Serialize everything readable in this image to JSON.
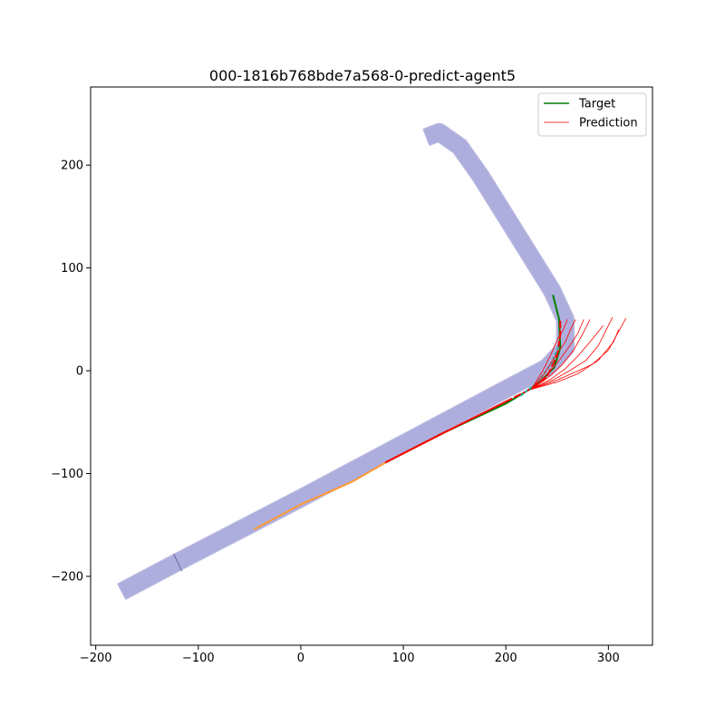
{
  "chart_data": {
    "type": "line",
    "title": "000-1816b768bde7a568-0-predict-agent5",
    "xlabel": "",
    "ylabel": "",
    "xlim": [
      -205,
      343
    ],
    "ylim": [
      -267,
      276
    ],
    "x_ticks": [
      -200,
      -100,
      0,
      100,
      200,
      300
    ],
    "x_tick_labels": [
      "−200",
      "−100",
      "0",
      "100",
      "200",
      "300"
    ],
    "y_ticks": [
      -200,
      -100,
      0,
      100,
      200
    ],
    "y_tick_labels": [
      "−200",
      "−100",
      "0",
      "100",
      "200"
    ],
    "grid": false,
    "legend": {
      "placement": "top-right",
      "entries": [
        {
          "label": "Target",
          "color": "#008000"
        },
        {
          "label": "Prediction",
          "color": "#ff0000"
        }
      ]
    },
    "lane": {
      "color": "#9e9edb",
      "centerline": [
        [
          -175,
          -215
        ],
        [
          -120,
          -186
        ],
        [
          0,
          -124
        ],
        [
          100,
          -71
        ],
        [
          200,
          -18
        ],
        [
          240,
          3
        ],
        [
          258,
          22
        ],
        [
          258,
          50
        ],
        [
          245,
          78
        ],
        [
          200,
          150
        ],
        [
          175,
          190
        ],
        [
          155,
          218
        ],
        [
          135,
          232
        ],
        [
          122,
          227
        ]
      ],
      "divider": [
        [
          -124,
          -178
        ],
        [
          -116,
          -195
        ]
      ]
    },
    "series": [
      {
        "name": "Target",
        "color": "#008000",
        "style": "solid",
        "points": [
          [
            83,
            -89
          ],
          [
            140,
            -60
          ],
          [
            200,
            -32
          ],
          [
            230,
            -14
          ],
          [
            247,
            3
          ],
          [
            253,
            22
          ],
          [
            252,
            50
          ],
          [
            246,
            73
          ]
        ]
      },
      {
        "color": "#ff9933",
        "style": "solid",
        "points": [
          [
            -45,
            -154
          ],
          [
            0,
            -130
          ],
          [
            50,
            -108
          ],
          [
            83,
            -89
          ]
        ]
      },
      {
        "color": "#ff0000",
        "style": "solid",
        "points": [
          [
            83,
            -89
          ],
          [
            140,
            -60
          ],
          [
            180,
            -40
          ],
          [
            200,
            -30
          ]
        ]
      },
      {
        "color": "#ff0000",
        "style": "dashed",
        "points": [
          [
            200,
            -30
          ],
          [
            220,
            -20
          ],
          [
            240,
            -6
          ],
          [
            250,
            15
          ],
          [
            253,
            35
          ],
          [
            253,
            48
          ]
        ]
      },
      {
        "color": "#20b2aa",
        "style": "dotted",
        "points": [
          [
            215,
            -24
          ],
          [
            232,
            -10
          ],
          [
            245,
            8
          ],
          [
            252,
            25
          ]
        ]
      }
    ],
    "prediction_fan": {
      "name": "Prediction",
      "color": "#ff0000",
      "trajectories": [
        [
          [
            225,
            -18
          ],
          [
            238,
            -2
          ],
          [
            248,
            14
          ],
          [
            258,
            28
          ],
          [
            263,
            40
          ],
          [
            268,
            50
          ]
        ],
        [
          [
            225,
            -18
          ],
          [
            240,
            -4
          ],
          [
            252,
            10
          ],
          [
            262,
            24
          ],
          [
            270,
            36
          ],
          [
            276,
            50
          ]
        ],
        [
          [
            225,
            -18
          ],
          [
            242,
            -6
          ],
          [
            255,
            6
          ],
          [
            266,
            20
          ],
          [
            274,
            34
          ],
          [
            282,
            50
          ]
        ],
        [
          [
            225,
            -18
          ],
          [
            244,
            -8
          ],
          [
            258,
            2
          ],
          [
            270,
            14
          ],
          [
            282,
            28
          ],
          [
            295,
            44
          ]
        ],
        [
          [
            225,
            -18
          ],
          [
            246,
            -9
          ],
          [
            262,
            0
          ],
          [
            278,
            10
          ],
          [
            290,
            24
          ],
          [
            304,
            52
          ]
        ],
        [
          [
            225,
            -18
          ],
          [
            248,
            -10
          ],
          [
            266,
            -2
          ],
          [
            284,
            6
          ],
          [
            300,
            20
          ],
          [
            317,
            51
          ]
        ],
        [
          [
            225,
            -18
          ],
          [
            236,
            0
          ],
          [
            244,
            16
          ],
          [
            250,
            30
          ],
          [
            256,
            40
          ],
          [
            260,
            50
          ]
        ],
        [
          [
            225,
            -18
          ],
          [
            250,
            -11
          ],
          [
            270,
            -3
          ],
          [
            290,
            10
          ],
          [
            305,
            28
          ],
          [
            310,
            40
          ]
        ]
      ]
    }
  }
}
